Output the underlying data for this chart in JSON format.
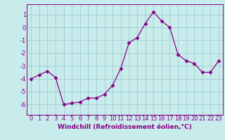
{
  "x": [
    0,
    1,
    2,
    3,
    4,
    5,
    6,
    7,
    8,
    9,
    10,
    11,
    12,
    13,
    14,
    15,
    16,
    17,
    18,
    19,
    20,
    21,
    22,
    23
  ],
  "y": [
    -4.0,
    -3.7,
    -3.4,
    -3.9,
    -6.0,
    -5.9,
    -5.8,
    -5.5,
    -5.5,
    -5.2,
    -4.5,
    -3.2,
    -1.2,
    -0.8,
    0.3,
    1.2,
    0.5,
    0.0,
    -2.1,
    -2.6,
    -2.8,
    -3.5,
    -3.5,
    -2.6
  ],
  "line_color": "#880088",
  "marker": "D",
  "markersize": 2.5,
  "background_color": "#c8ecec",
  "grid_color": "#a0cccc",
  "xlabel": "Windchill (Refroidissement éolien,°C)",
  "ylabel": "",
  "xlim": [
    -0.5,
    23.5
  ],
  "ylim": [
    -6.8,
    1.8
  ],
  "yticks": [
    1,
    0,
    -1,
    -2,
    -3,
    -4,
    -5,
    -6
  ],
  "xticks": [
    0,
    1,
    2,
    3,
    4,
    5,
    6,
    7,
    8,
    9,
    10,
    11,
    12,
    13,
    14,
    15,
    16,
    17,
    18,
    19,
    20,
    21,
    22,
    23
  ],
  "tick_color": "#880088",
  "spine_color": "#880088",
  "label_fontsize": 6.5,
  "tick_fontsize": 6.0
}
